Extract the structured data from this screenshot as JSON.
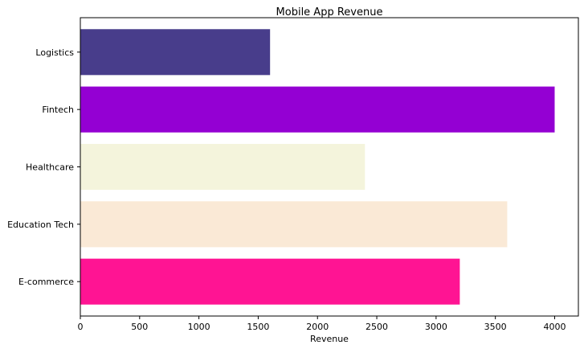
{
  "chart_data": {
    "type": "bar",
    "orientation": "horizontal",
    "title": "Mobile App Revenue",
    "xlabel": "Revenue",
    "ylabel": "",
    "categories": [
      "E-commerce",
      "Education Tech",
      "Healthcare",
      "Fintech",
      "Logistics"
    ],
    "values": [
      3200,
      3600,
      2400,
      4000,
      1600
    ],
    "colors": [
      "#ff1493",
      "#fae9d6",
      "#f4f4dc",
      "#9400d3",
      "#483d8b"
    ],
    "xlim": [
      0,
      4200
    ],
    "xticks": [
      0,
      500,
      1000,
      1500,
      2000,
      2500,
      3000,
      3500,
      4000
    ],
    "grid": false,
    "legend": "none"
  }
}
